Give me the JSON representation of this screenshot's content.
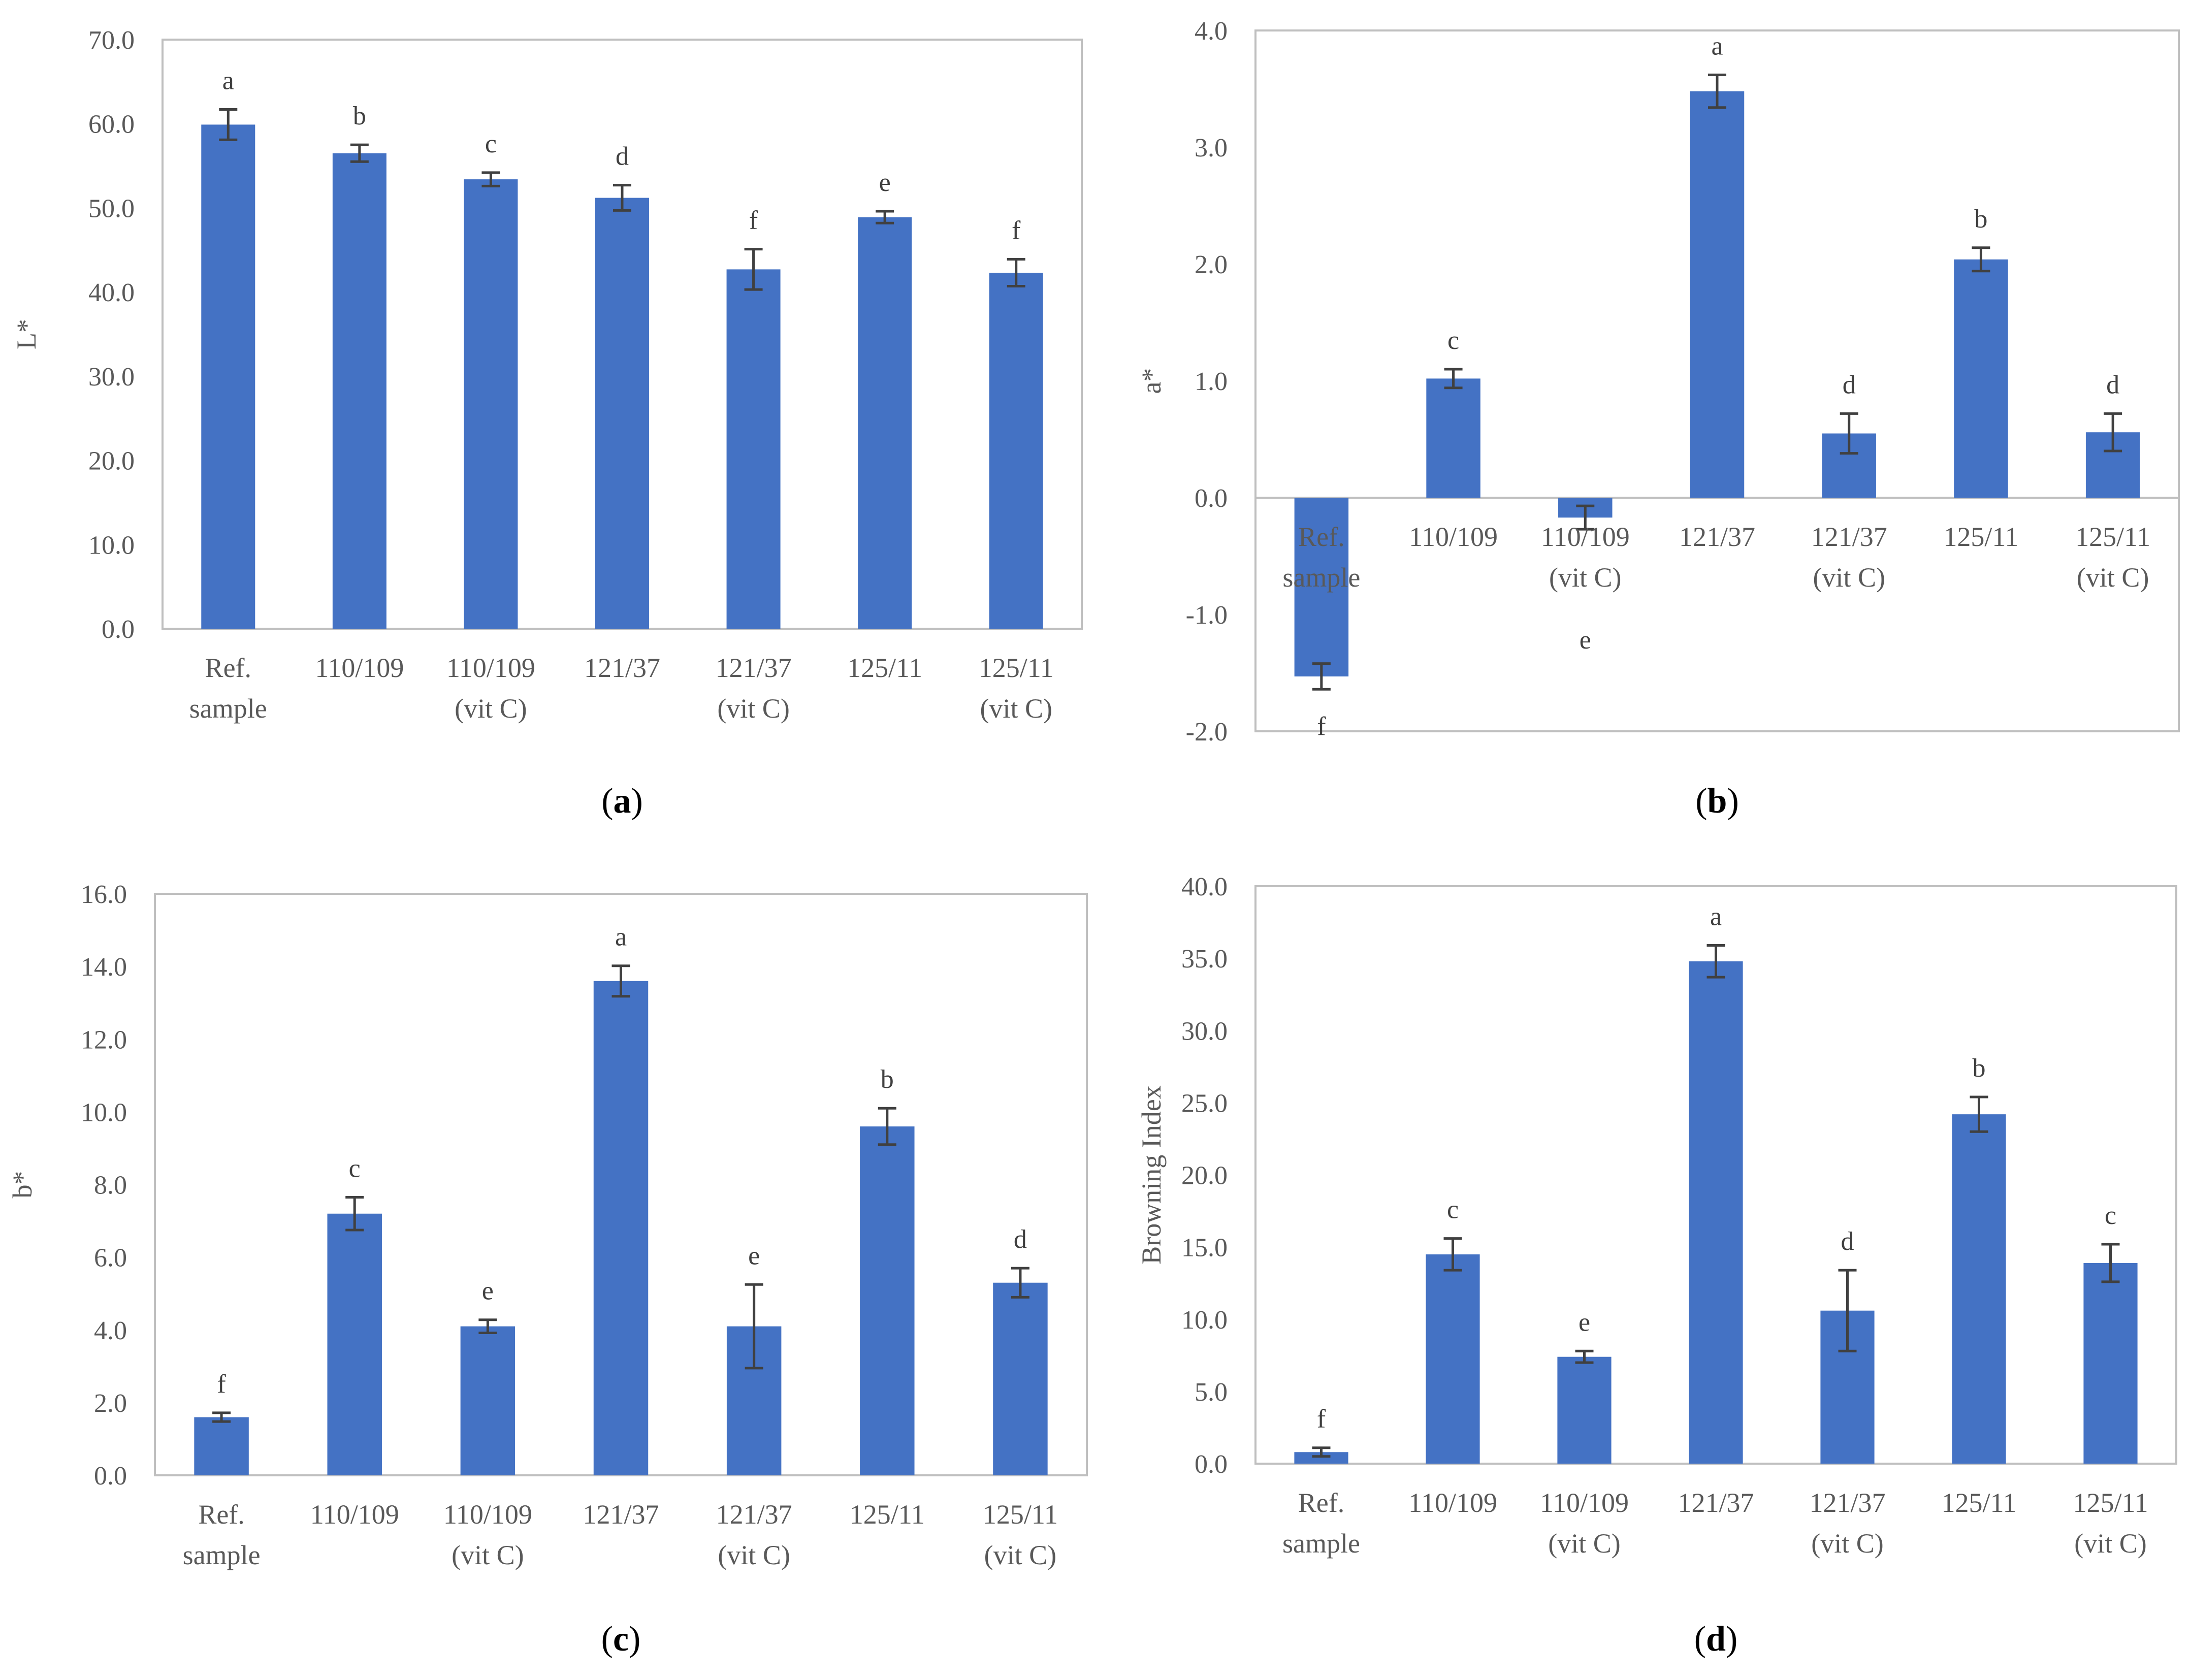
{
  "colors": {
    "bar": "#4472c4",
    "axis": "#bfbfbf",
    "frame": "#bfbfbf",
    "error": "#404040",
    "zero_line": "#bfbfbf"
  },
  "chart_data": [
    {
      "panel": "a",
      "type": "bar",
      "ylabel": "L*",
      "categories": [
        [
          "Ref.",
          "sample"
        ],
        [
          "110/109"
        ],
        [
          "110/109",
          "(vit C)"
        ],
        [
          "121/37"
        ],
        [
          "121/37",
          "(vit C)"
        ],
        [
          "125/11"
        ],
        [
          "125/11",
          "(vit C)"
        ]
      ],
      "values": [
        59.9,
        56.5,
        53.4,
        51.2,
        42.7,
        48.9,
        42.3
      ],
      "errors": [
        1.8,
        1.0,
        0.8,
        1.5,
        2.4,
        0.7,
        1.6
      ],
      "letters": [
        "a",
        "b",
        "c",
        "d",
        "f",
        "e",
        "f"
      ],
      "ylim": [
        0,
        70
      ],
      "yticks": [
        0,
        10,
        20,
        30,
        40,
        50,
        60,
        70
      ],
      "tick_labels": [
        "0.0",
        "10.0",
        "20.0",
        "30.0",
        "40.0",
        "50.0",
        "60.0",
        "70.0"
      ]
    },
    {
      "panel": "b",
      "type": "bar",
      "ylabel": "a*",
      "categories": [
        [
          "Ref.",
          "sample"
        ],
        [
          "110/109"
        ],
        [
          "110/109",
          "(vit C)"
        ],
        [
          "121/37"
        ],
        [
          "121/37",
          "(vit C)"
        ],
        [
          "125/11"
        ],
        [
          "125/11",
          "(vit C)"
        ]
      ],
      "values": [
        -1.53,
        1.02,
        -0.17,
        3.48,
        0.55,
        2.04,
        0.56
      ],
      "errors": [
        0.11,
        0.08,
        0.1,
        0.14,
        0.17,
        0.1,
        0.16
      ],
      "letters": [
        "f",
        "c",
        "e",
        "a",
        "d",
        "b",
        "d"
      ],
      "ylim": [
        -2,
        4
      ],
      "yticks": [
        -2,
        -1,
        0,
        1,
        2,
        3,
        4
      ],
      "tick_labels": [
        "-2.0",
        "-1.0",
        "0.0",
        "1.0",
        "2.0",
        "3.0",
        "4.0"
      ]
    },
    {
      "panel": "c",
      "type": "bar",
      "ylabel": "b*",
      "categories": [
        [
          "Ref.",
          "sample"
        ],
        [
          "110/109"
        ],
        [
          "110/109",
          "(vit C)"
        ],
        [
          "121/37"
        ],
        [
          "121/37",
          "(vit C)"
        ],
        [
          "125/11"
        ],
        [
          "125/11",
          "(vit C)"
        ]
      ],
      "values": [
        1.6,
        7.2,
        4.1,
        13.6,
        4.1,
        9.6,
        5.3
      ],
      "errors": [
        0.12,
        0.45,
        0.18,
        0.42,
        1.15,
        0.5,
        0.4
      ],
      "letters": [
        "f",
        "c",
        "e",
        "a",
        "e",
        "b",
        "d"
      ],
      "ylim": [
        0,
        16
      ],
      "yticks": [
        0,
        2,
        4,
        6,
        8,
        10,
        12,
        14,
        16
      ],
      "tick_labels": [
        "0.0",
        "2.0",
        "4.0",
        "6.0",
        "8.0",
        "10.0",
        "12.0",
        "14.0",
        "16.0"
      ]
    },
    {
      "panel": "d",
      "type": "bar",
      "ylabel": "Browning Index",
      "categories": [
        [
          "Ref.",
          "sample"
        ],
        [
          "110/109"
        ],
        [
          "110/109",
          "(vit C)"
        ],
        [
          "121/37"
        ],
        [
          "121/37",
          "(vit C)"
        ],
        [
          "125/11"
        ],
        [
          "125/11",
          "(vit C)"
        ]
      ],
      "values": [
        0.8,
        14.5,
        7.4,
        34.8,
        10.6,
        24.2,
        13.9
      ],
      "errors": [
        0.3,
        1.1,
        0.4,
        1.1,
        2.8,
        1.2,
        1.3
      ],
      "letters": [
        "f",
        "c",
        "e",
        "a",
        "d",
        "b",
        "c"
      ],
      "ylim": [
        0,
        40
      ],
      "yticks": [
        0,
        5,
        10,
        15,
        20,
        25,
        30,
        35,
        40
      ],
      "tick_labels": [
        "0.0",
        "5.0",
        "10.0",
        "15.0",
        "20.0",
        "25.0",
        "30.0",
        "35.0",
        "40.0"
      ]
    }
  ]
}
